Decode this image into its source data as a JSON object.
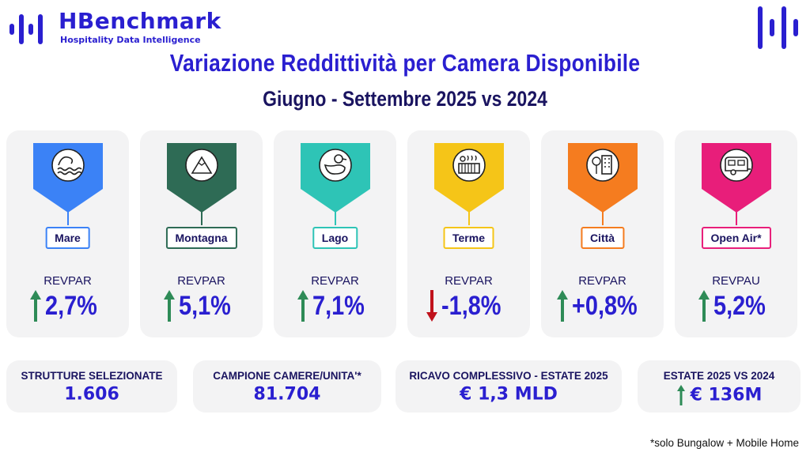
{
  "brand": {
    "name": "HBenchmark",
    "tagline": "Hospitality Data Intelligence",
    "logo_icon": "bars-logo-icon",
    "color": "#2a1fd0"
  },
  "title": "Variazione Reddittività per Camera Disponibile",
  "subtitle": "Giugno - Settembre 2025 vs 2024",
  "cards": [
    {
      "label": "Mare",
      "icon": "sea-icon",
      "color": "#3b82f6",
      "metric": "REVPAR",
      "value": "2,7%",
      "trend": "up"
    },
    {
      "label": "Montagna",
      "icon": "mountain-icon",
      "color": "#2e6b55",
      "metric": "REVPAR",
      "value": "5,1%",
      "trend": "up"
    },
    {
      "label": "Lago",
      "icon": "duck-icon",
      "color": "#2ec4b6",
      "metric": "REVPAR",
      "value": "7,1%",
      "trend": "up"
    },
    {
      "label": "Terme",
      "icon": "spa-icon",
      "color": "#f5c518",
      "metric": "REVPAR",
      "value": "-1,8%",
      "trend": "down"
    },
    {
      "label": "Città",
      "icon": "city-icon",
      "color": "#f57c1f",
      "metric": "REVPAR",
      "value": "+0,8%",
      "trend": "up"
    },
    {
      "label": "Open Air*",
      "icon": "caravan-icon",
      "color": "#e81e7a",
      "metric": "REVPAU",
      "value": "5,2%",
      "trend": "up"
    }
  ],
  "stats": [
    {
      "label": "STRUTTURE SELEZIONATE",
      "value": "1.606"
    },
    {
      "label": "CAMPIONE CAMERE/UNITA'*",
      "value": "81.704"
    },
    {
      "label": "RICAVO COMPLESSIVO - ESTATE 2025",
      "value": "€ 1,3 MLD"
    },
    {
      "label": "ESTATE 2025 VS 2024",
      "value": "€ 136M",
      "trend": "up"
    }
  ],
  "colors": {
    "up_arrow": "#2e8b57",
    "down_arrow": "#c0121c",
    "accent": "#2a1fd0",
    "dark_text": "#1a1460"
  },
  "footnote": "*solo Bungalow + Mobile Home"
}
